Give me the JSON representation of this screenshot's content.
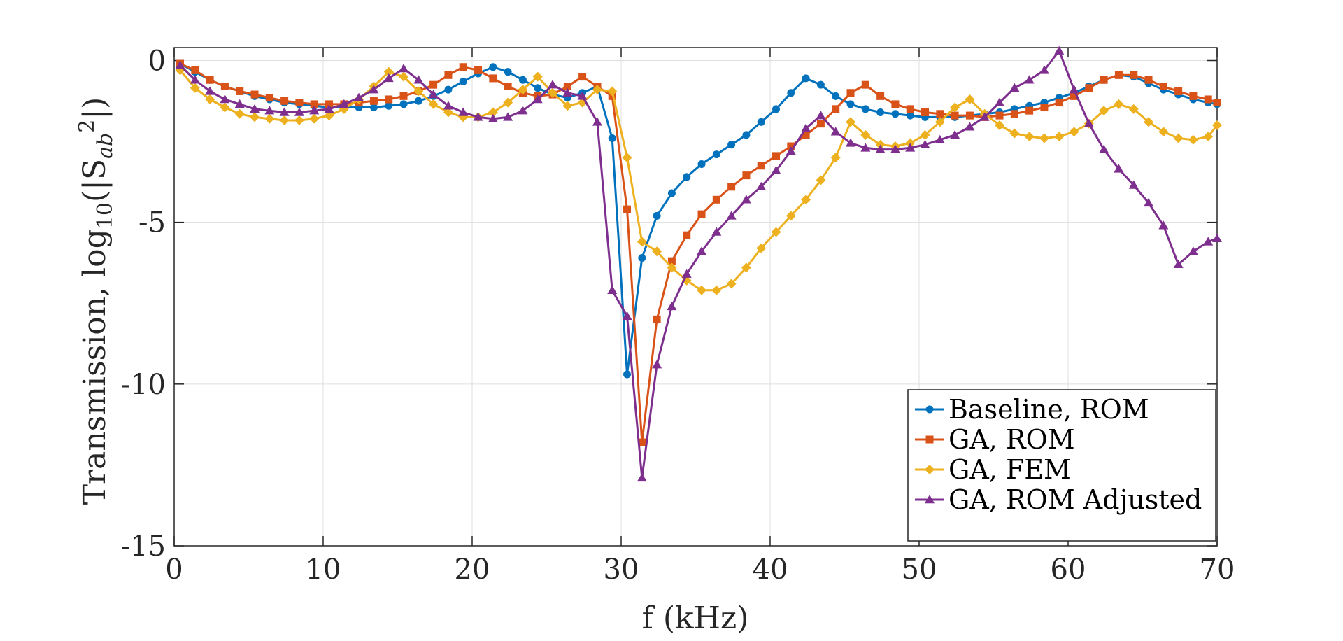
{
  "chart_data": {
    "type": "line",
    "title": "",
    "xlabel": "f (kHz)",
    "ylabel_main": "Transmission, log",
    "ylabel_sub": "10",
    "ylabel_open": "(|S",
    "ylabel_subscript": "ab",
    "ylabel_sup": "2",
    "ylabel_close": "|)",
    "xlim": [
      0,
      70
    ],
    "ylim": [
      -15,
      0.4
    ],
    "xticks": [
      0,
      10,
      20,
      30,
      40,
      50,
      60,
      70
    ],
    "yticks": [
      0,
      -5,
      -10,
      -15
    ],
    "xtick_labels": [
      "0",
      "10",
      "20",
      "30",
      "40",
      "50",
      "60",
      "70"
    ],
    "ytick_labels": [
      "0",
      "-5",
      "-10",
      "-15"
    ],
    "grid": true,
    "legend_position": "bottom-right",
    "series": [
      {
        "name": "Baseline, ROM",
        "color": "#0072BD",
        "marker": "circle",
        "x": [
          0.4,
          1.4,
          2.4,
          3.4,
          4.4,
          5.4,
          6.4,
          7.4,
          8.4,
          9.4,
          10.4,
          11.4,
          12.4,
          13.4,
          14.4,
          15.4,
          16.4,
          17.4,
          18.4,
          19.4,
          20.4,
          21.4,
          22.4,
          23.4,
          24.4,
          25.4,
          26.4,
          27.4,
          28.4,
          29.4,
          30.4,
          31.4,
          32.4,
          33.4,
          34.4,
          35.4,
          36.4,
          37.4,
          38.4,
          39.4,
          40.4,
          41.4,
          42.4,
          43.4,
          44.4,
          45.4,
          46.4,
          47.4,
          48.4,
          49.4,
          50.4,
          51.4,
          52.4,
          53.4,
          54.4,
          55.4,
          56.4,
          57.4,
          58.4,
          59.4,
          60.4,
          61.4,
          62.4,
          63.4,
          64.4,
          65.4,
          66.4,
          67.4,
          68.4,
          69.4,
          70.0
        ],
        "y": [
          -0.1,
          -0.35,
          -0.6,
          -0.8,
          -0.95,
          -1.1,
          -1.2,
          -1.3,
          -1.35,
          -1.4,
          -1.45,
          -1.45,
          -1.45,
          -1.45,
          -1.4,
          -1.35,
          -1.25,
          -1.1,
          -0.9,
          -0.65,
          -0.4,
          -0.2,
          -0.35,
          -0.6,
          -0.85,
          -1.05,
          -1.15,
          -1.0,
          -0.8,
          -2.4,
          -9.7,
          -6.1,
          -4.8,
          -4.1,
          -3.6,
          -3.2,
          -2.9,
          -2.6,
          -2.3,
          -1.9,
          -1.5,
          -1.0,
          -0.55,
          -0.75,
          -1.1,
          -1.35,
          -1.5,
          -1.6,
          -1.65,
          -1.7,
          -1.75,
          -1.75,
          -1.75,
          -1.7,
          -1.65,
          -1.6,
          -1.5,
          -1.4,
          -1.3,
          -1.15,
          -1.0,
          -0.8,
          -0.6,
          -0.45,
          -0.5,
          -0.7,
          -0.9,
          -1.05,
          -1.2,
          -1.3,
          -1.35
        ]
      },
      {
        "name": "GA, ROM",
        "color": "#D95319",
        "marker": "square",
        "x": [
          0.4,
          1.4,
          2.4,
          3.4,
          4.4,
          5.4,
          6.4,
          7.4,
          8.4,
          9.4,
          10.4,
          11.4,
          12.4,
          13.4,
          14.4,
          15.4,
          16.4,
          17.4,
          18.4,
          19.4,
          20.4,
          21.4,
          22.4,
          23.4,
          24.4,
          25.4,
          26.4,
          27.4,
          28.4,
          29.4,
          30.4,
          31.4,
          32.4,
          33.4,
          34.4,
          35.4,
          36.4,
          37.4,
          38.4,
          39.4,
          40.4,
          41.4,
          42.4,
          43.4,
          44.4,
          45.4,
          46.4,
          47.4,
          48.4,
          49.4,
          50.4,
          51.4,
          52.4,
          53.4,
          54.4,
          55.4,
          56.4,
          57.4,
          58.4,
          59.4,
          60.4,
          61.4,
          62.4,
          63.4,
          64.4,
          65.4,
          66.4,
          67.4,
          68.4,
          69.4,
          70.0
        ],
        "y": [
          -0.1,
          -0.3,
          -0.6,
          -0.8,
          -0.95,
          -1.05,
          -1.15,
          -1.25,
          -1.3,
          -1.35,
          -1.35,
          -1.35,
          -1.3,
          -1.25,
          -1.2,
          -1.1,
          -0.95,
          -0.75,
          -0.45,
          -0.2,
          -0.3,
          -0.55,
          -0.8,
          -1.0,
          -1.1,
          -1.05,
          -0.8,
          -0.5,
          -0.8,
          -1.1,
          -4.6,
          -11.8,
          -8.0,
          -6.2,
          -5.4,
          -4.75,
          -4.3,
          -3.9,
          -3.55,
          -3.25,
          -2.95,
          -2.65,
          -2.3,
          -1.95,
          -1.5,
          -1.0,
          -0.75,
          -1.1,
          -1.35,
          -1.5,
          -1.6,
          -1.65,
          -1.7,
          -1.7,
          -1.75,
          -1.7,
          -1.65,
          -1.55,
          -1.45,
          -1.3,
          -1.1,
          -0.85,
          -0.6,
          -0.45,
          -0.45,
          -0.6,
          -0.8,
          -0.95,
          -1.1,
          -1.2,
          -1.3
        ]
      },
      {
        "name": "GA, FEM",
        "color": "#EDB120",
        "marker": "diamond",
        "x": [
          0.4,
          1.4,
          2.4,
          3.4,
          4.4,
          5.4,
          6.4,
          7.4,
          8.4,
          9.4,
          10.4,
          11.4,
          12.4,
          13.4,
          14.4,
          15.4,
          16.4,
          17.4,
          18.4,
          19.4,
          20.4,
          21.4,
          22.4,
          23.4,
          24.4,
          25.4,
          26.4,
          27.4,
          28.4,
          29.4,
          30.4,
          31.4,
          32.4,
          33.4,
          34.4,
          35.4,
          36.4,
          37.4,
          38.4,
          39.4,
          40.4,
          41.4,
          42.4,
          43.4,
          44.4,
          45.4,
          46.4,
          47.4,
          48.4,
          49.4,
          50.4,
          51.4,
          52.4,
          53.4,
          54.4,
          55.4,
          56.4,
          57.4,
          58.4,
          59.4,
          60.4,
          61.4,
          62.4,
          63.4,
          64.4,
          65.4,
          66.4,
          67.4,
          68.4,
          69.4,
          70.0
        ],
        "y": [
          -0.3,
          -0.85,
          -1.2,
          -1.45,
          -1.65,
          -1.75,
          -1.8,
          -1.85,
          -1.85,
          -1.8,
          -1.7,
          -1.5,
          -1.2,
          -0.8,
          -0.35,
          -0.5,
          -0.95,
          -1.35,
          -1.6,
          -1.75,
          -1.75,
          -1.6,
          -1.3,
          -0.9,
          -0.5,
          -1.0,
          -1.4,
          -1.3,
          -0.9,
          -0.95,
          -3.0,
          -5.6,
          -5.9,
          -6.4,
          -6.8,
          -7.1,
          -7.1,
          -6.9,
          -6.4,
          -5.8,
          -5.3,
          -4.8,
          -4.3,
          -3.7,
          -3.0,
          -1.9,
          -2.3,
          -2.6,
          -2.65,
          -2.55,
          -2.3,
          -1.9,
          -1.45,
          -1.2,
          -1.65,
          -2.0,
          -2.25,
          -2.35,
          -2.4,
          -2.35,
          -2.2,
          -1.95,
          -1.55,
          -1.35,
          -1.5,
          -1.9,
          -2.2,
          -2.4,
          -2.45,
          -2.35,
          -2.0
        ]
      },
      {
        "name": "GA, ROM Adjusted",
        "color": "#7E2F8E",
        "marker": "triangle",
        "x": [
          0.4,
          1.4,
          2.4,
          3.4,
          4.4,
          5.4,
          6.4,
          7.4,
          8.4,
          9.4,
          10.4,
          11.4,
          12.4,
          13.4,
          14.4,
          15.4,
          16.4,
          17.4,
          18.4,
          19.4,
          20.4,
          21.4,
          22.4,
          23.4,
          24.4,
          25.4,
          26.4,
          27.4,
          28.4,
          29.4,
          30.4,
          31.4,
          32.4,
          33.4,
          34.4,
          35.4,
          36.4,
          37.4,
          38.4,
          39.4,
          40.4,
          41.4,
          42.4,
          43.4,
          44.4,
          45.4,
          46.4,
          47.4,
          48.4,
          49.4,
          50.4,
          51.4,
          52.4,
          53.4,
          54.4,
          55.4,
          56.4,
          57.4,
          58.4,
          59.4,
          60.4,
          61.4,
          62.4,
          63.4,
          64.4,
          65.4,
          66.4,
          67.4,
          68.4,
          69.4,
          70.0
        ],
        "y": [
          -0.15,
          -0.6,
          -0.95,
          -1.2,
          -1.35,
          -1.5,
          -1.55,
          -1.6,
          -1.6,
          -1.55,
          -1.5,
          -1.35,
          -1.15,
          -0.9,
          -0.55,
          -0.25,
          -0.6,
          -1.05,
          -1.4,
          -1.6,
          -1.75,
          -1.8,
          -1.75,
          -1.55,
          -1.2,
          -0.75,
          -1.0,
          -1.1,
          -1.9,
          -7.1,
          -7.9,
          -12.9,
          -9.4,
          -7.6,
          -6.6,
          -5.9,
          -5.3,
          -4.8,
          -4.3,
          -3.9,
          -3.4,
          -2.8,
          -2.1,
          -1.7,
          -2.2,
          -2.55,
          -2.7,
          -2.75,
          -2.75,
          -2.7,
          -2.6,
          -2.45,
          -2.3,
          -2.05,
          -1.75,
          -1.3,
          -0.85,
          -0.6,
          -0.3,
          0.3,
          -0.9,
          -1.95,
          -2.75,
          -3.35,
          -3.85,
          -4.4,
          -5.1,
          -6.3,
          -5.9,
          -5.6,
          -5.5
        ]
      }
    ]
  }
}
